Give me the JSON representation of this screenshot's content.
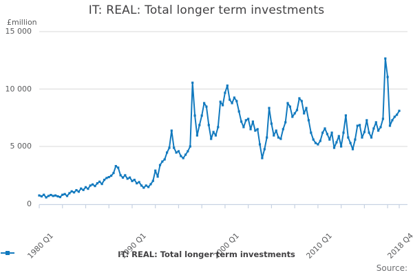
{
  "title": "IT: REAL: Total longer term investments",
  "y_axis": {
    "unit_label": "£million",
    "ticks": [
      "15 000",
      "10 000",
      "5 000",
      "0"
    ],
    "tick_values": [
      15000,
      10000,
      5000,
      0
    ]
  },
  "x_axis": {
    "labels": [
      "1980 Q1",
      "1990 Q1",
      "2000 Q1",
      "2010 Q1",
      "2018 Q4"
    ],
    "label_quarter_index": [
      0,
      40,
      80,
      120,
      155
    ],
    "minor_tick_every_quarters": 10
  },
  "legend": {
    "label": "IT: REAL: Total longer term investments"
  },
  "source_label": "Source:",
  "colors": {
    "line": "#1179be",
    "grid": "#d9d9d9",
    "axis": "#c7d2e2",
    "title_text": "#414042",
    "muted_text": "#58595b"
  },
  "chart_data": {
    "type": "line",
    "title": "IT: REAL: Total longer term investments",
    "xlabel": "",
    "ylabel": "£million",
    "ylim": [
      0,
      15000
    ],
    "grid": "horizontal",
    "legend_position": "bottom-center",
    "x_start": "1980 Q1",
    "x_end": "2018 Q4",
    "frequency": "quarterly",
    "x_tick_labels": [
      "1980 Q1",
      "1990 Q1",
      "2000 Q1",
      "2010 Q1",
      "2018 Q4"
    ],
    "marker": "square",
    "series": [
      {
        "name": "IT: REAL: Total longer term investments",
        "values": [
          730,
          650,
          790,
          560,
          690,
          770,
          690,
          730,
          650,
          590,
          790,
          850,
          690,
          930,
          1090,
          1000,
          1190,
          1060,
          1330,
          1210,
          1450,
          1310,
          1590,
          1690,
          1550,
          1790,
          1930,
          1730,
          2090,
          2250,
          2330,
          2450,
          2690,
          3290,
          3150,
          2490,
          2290,
          2490,
          2190,
          2290,
          1990,
          2090,
          1790,
          1890,
          1590,
          1410,
          1590,
          1470,
          1710,
          2000,
          2890,
          2370,
          3380,
          3680,
          3870,
          4470,
          4880,
          6380,
          4880,
          4470,
          4580,
          4160,
          3980,
          4280,
          4580,
          5000,
          10550,
          7690,
          5960,
          6860,
          7690,
          8770,
          8470,
          6860,
          5660,
          6260,
          5960,
          6680,
          8890,
          8590,
          9670,
          10300,
          9070,
          8770,
          9250,
          8950,
          8050,
          7160,
          6680,
          7280,
          7400,
          6500,
          7160,
          6380,
          6500,
          5180,
          3980,
          4760,
          5780,
          8350,
          6980,
          5960,
          6380,
          5780,
          5660,
          6500,
          7100,
          8770,
          8470,
          7580,
          7880,
          8170,
          9190,
          8950,
          7880,
          8350,
          7280,
          6200,
          5600,
          5300,
          5180,
          5480,
          6200,
          6560,
          6080,
          5600,
          6200,
          4880,
          5360,
          5900,
          5000,
          6200,
          7700,
          5780,
          5300,
          4760,
          5600,
          6800,
          6860,
          5780,
          6260,
          7280,
          6200,
          5780,
          6560,
          7100,
          6380,
          6680,
          7400,
          12660,
          11050,
          6800,
          7280,
          7580,
          7760,
          8100
        ]
      }
    ]
  }
}
